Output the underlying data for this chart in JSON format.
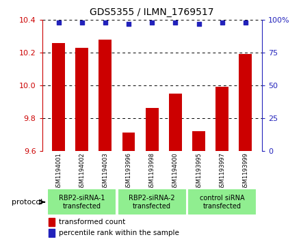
{
  "title": "GDS5355 / ILMN_1769517",
  "samples": [
    "GSM1194001",
    "GSM1194002",
    "GSM1194003",
    "GSM1193996",
    "GSM1193998",
    "GSM1194000",
    "GSM1193995",
    "GSM1193997",
    "GSM1193999"
  ],
  "transformed_counts": [
    10.26,
    10.23,
    10.28,
    9.71,
    9.86,
    9.95,
    9.72,
    9.99,
    10.19
  ],
  "percentile_ranks": [
    98,
    98,
    98,
    97,
    98,
    98,
    97,
    98,
    98
  ],
  "ylim": [
    9.6,
    10.4
  ],
  "yticks": [
    9.6,
    9.8,
    10.0,
    10.2,
    10.4
  ],
  "right_ylim": [
    0,
    100
  ],
  "right_yticks": [
    0,
    25,
    50,
    75,
    100
  ],
  "right_yticklabels": [
    "0",
    "25",
    "50",
    "75",
    "100%"
  ],
  "groups": [
    {
      "label": "RBP2-siRNA-1\ntransfected",
      "start": 0,
      "end": 2,
      "color": "#90ee90"
    },
    {
      "label": "RBP2-siRNA-2\ntransfected",
      "start": 3,
      "end": 5,
      "color": "#90ee90"
    },
    {
      "label": "control siRNA\ntransfected",
      "start": 6,
      "end": 8,
      "color": "#90ee90"
    }
  ],
  "bar_color": "#cc0000",
  "dot_color": "#2222bb",
  "bar_width": 0.55,
  "background_color": "#ffffff",
  "sample_label_bg": "#cccccc",
  "group_label_color": "#90ee90",
  "protocol_label": "protocol",
  "legend_red_label": "transformed count",
  "legend_blue_label": "percentile rank within the sample"
}
